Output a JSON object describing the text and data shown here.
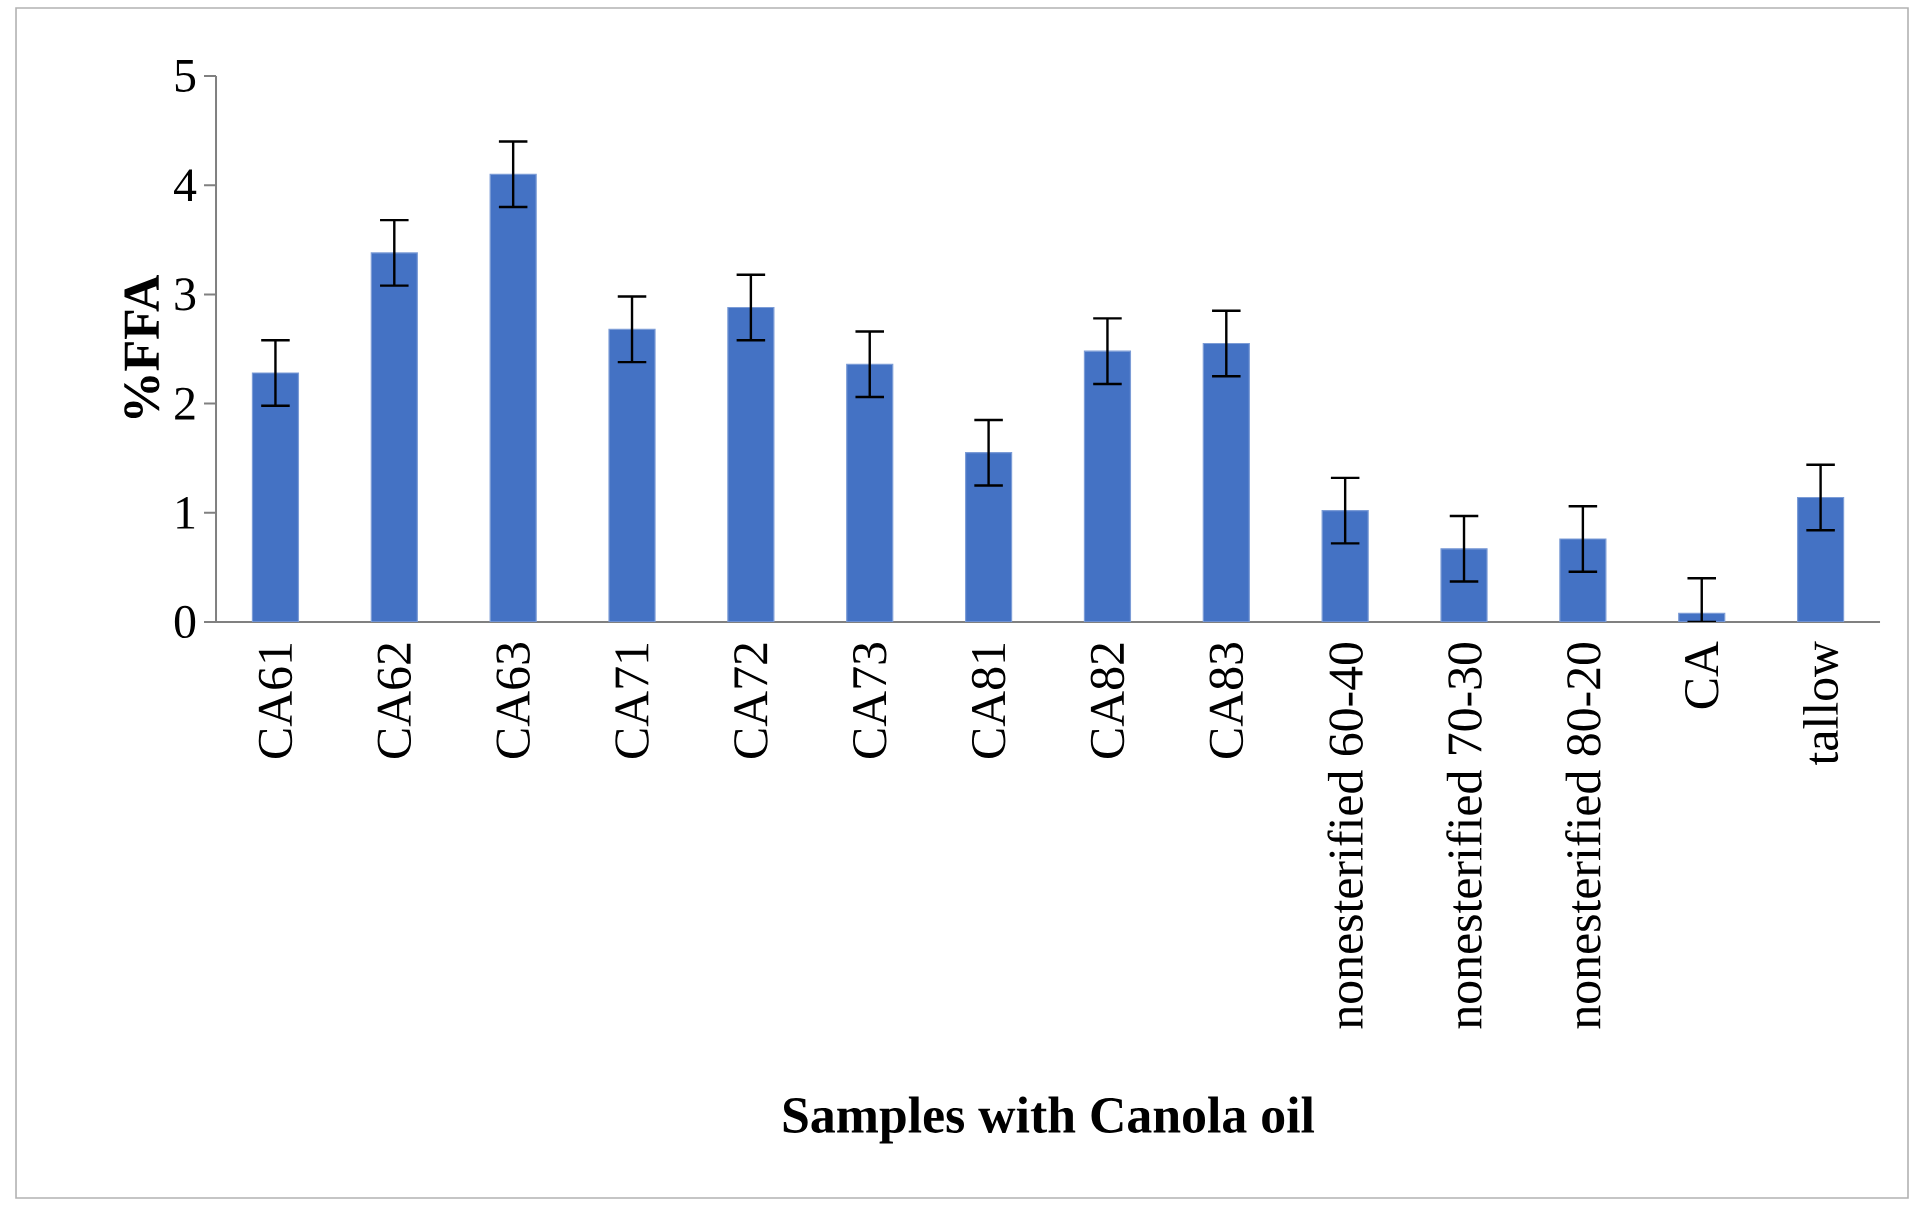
{
  "chart_data": {
    "type": "bar",
    "xlabel": "Samples with Canola oil",
    "ylabel": "%FFA",
    "categories": [
      "CA61",
      "CA62",
      "CA63",
      "CA71",
      "CA72",
      "CA73",
      "CA81",
      "CA82",
      "CA83",
      "nonesterified 60-40",
      "nonesterified 70-30",
      "nonesterified 80-20",
      "CA",
      "tallow"
    ],
    "values": [
      2.28,
      3.38,
      4.1,
      2.68,
      2.88,
      2.36,
      1.55,
      2.48,
      2.55,
      1.02,
      0.67,
      0.76,
      0.08,
      1.14
    ],
    "errors": [
      0.3,
      0.3,
      0.3,
      0.3,
      0.3,
      0.3,
      0.3,
      0.3,
      0.3,
      0.3,
      0.3,
      0.3,
      [
        0,
        0.4
      ],
      0.3
    ],
    "color": "#4472c4",
    "ylim": [
      0,
      5
    ],
    "yticks": [
      0,
      1,
      2,
      3,
      4,
      5
    ],
    "grid": false
  }
}
